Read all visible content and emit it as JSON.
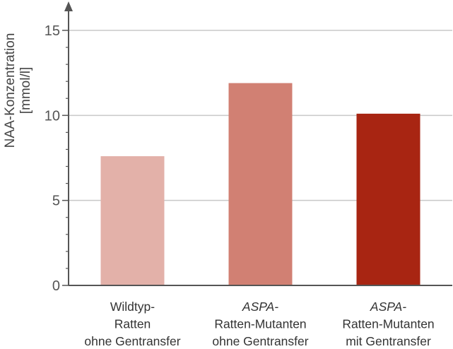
{
  "chart_data": {
    "type": "bar",
    "title": "",
    "xlabel": "",
    "ylabel": [
      "NAA-Konzentration",
      "[mmol/l]"
    ],
    "ylim": [
      0,
      15
    ],
    "yticks": [
      0,
      5,
      10,
      15
    ],
    "grid": true,
    "categories": [
      {
        "lines": [
          "Wildtyp-",
          "Ratten",
          "ohne Gentransfer"
        ],
        "italic_first": false
      },
      {
        "lines": [
          "ASPA-",
          "Ratten-Mutanten",
          "ohne Gentransfer"
        ],
        "italic_first": true
      },
      {
        "lines": [
          "ASPA-",
          "Ratten-Mutanten",
          "mit Gentransfer"
        ],
        "italic_first": true
      }
    ],
    "values": [
      7.6,
      11.9,
      10.1
    ],
    "colors": [
      "#e3b1a9",
      "#d18073",
      "#a82512"
    ],
    "axis_color": "#555555",
    "grid_color": "#c8c8c8"
  }
}
